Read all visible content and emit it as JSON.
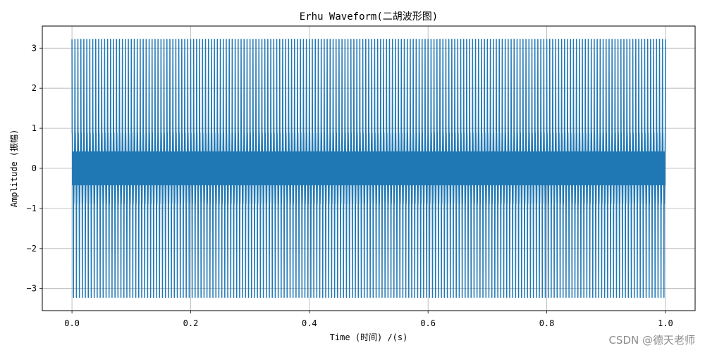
{
  "chart_data": {
    "type": "line",
    "title": "Erhu Waveform(二胡波形图)",
    "xlabel": "Time (时间) /(s)",
    "ylabel": "Amplitude (振幅)",
    "xlim": [
      -0.05,
      1.05
    ],
    "ylim": [
      -3.55,
      3.55
    ],
    "x_ticks": [
      0.0,
      0.2,
      0.4,
      0.6,
      0.8,
      1.0
    ],
    "x_tick_labels": [
      "0.0",
      "0.2",
      "0.4",
      "0.6",
      "0.8",
      "1.0"
    ],
    "y_ticks": [
      -3,
      -2,
      -1,
      0,
      1,
      2,
      3
    ],
    "y_tick_labels": [
      "−3",
      "−2",
      "−1",
      "0",
      "1",
      "2",
      "3"
    ],
    "grid": true,
    "series": [
      {
        "color": "#1f77b4",
        "x_start": 0.0,
        "x_end": 1.0,
        "amplitude_max": 3.22,
        "amplitude_min": -3.22,
        "secondary_levels": [
          0.88,
          -0.88
        ],
        "core_band": [
          -0.42,
          0.42
        ]
      }
    ]
  },
  "watermark": "CSDN @德天老师"
}
